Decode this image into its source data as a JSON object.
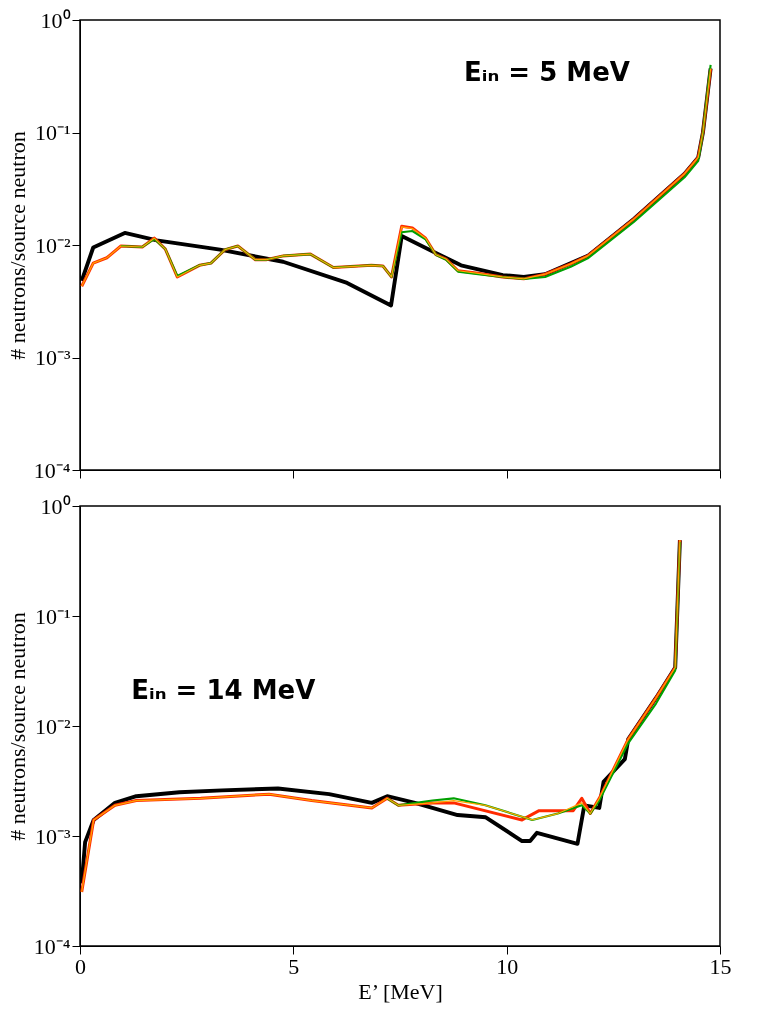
{
  "chart_data": [
    {
      "type": "line",
      "ylabel": "# neutrons/source neutron",
      "annotations": [
        "Eᵢₙ = 5 MeV"
      ],
      "log": "y",
      "grid": false,
      "legend": false,
      "tick_labels": "y",
      "line_style": "solid",
      "marker": "none",
      "xlim": [
        0,
        15
      ],
      "xticks": [
        {
          "value": 0,
          "label": null
        },
        {
          "value": 5,
          "label": null
        },
        {
          "value": 10,
          "label": null
        },
        {
          "value": 15,
          "label": null
        }
      ],
      "ylim": [
        0.0001,
        1
      ],
      "yticks": [
        {
          "value": 0.0001,
          "label": "10⁻⁴"
        },
        {
          "value": 0.001,
          "label": "10⁻³"
        },
        {
          "value": 0.01,
          "label": "10⁻²"
        },
        {
          "value": 0.1,
          "label": "10⁻¹"
        },
        {
          "value": 1,
          "label": "10⁰"
        }
      ],
      "series": [
        {
          "color": "#ffa500",
          "x": [
            0.04,
            0.31,
            0.63,
            0.96,
            1.46,
            1.74,
            2.0,
            2.28,
            2.8,
            3.07,
            3.4,
            3.7,
            4.11,
            4.36,
            4.76,
            5.4,
            5.94,
            6.83,
            7.1,
            7.3,
            7.54,
            7.79,
            8.1,
            8.34,
            8.58,
            8.86,
            9.33,
            9.9,
            10.4,
            10.9,
            11.5,
            11.9,
            12.98,
            14.17,
            14.49,
            14.6,
            14.78
          ],
          "values": [
            0.0043,
            0.0069,
            0.0077,
            0.0098,
            0.0096,
            0.0115,
            0.0092,
            0.0052,
            0.0066,
            0.0069,
            0.0091,
            0.0098,
            0.0074,
            0.0074,
            0.008,
            0.0083,
            0.0063,
            0.0066,
            0.0065,
            0.0052,
            0.0145,
            0.014,
            0.0115,
            0.0082,
            0.0075,
            0.0059,
            0.0056,
            0.0052,
            0.005,
            0.0055,
            0.0068,
            0.008,
            0.017,
            0.043,
            0.06,
            0.1,
            0.37
          ]
        },
        {
          "color": "#00a000",
          "x": [
            0.96,
            1.46,
            1.74,
            2.0,
            2.28,
            2.8,
            3.07,
            3.4,
            3.7,
            4.11,
            4.36,
            4.76,
            5.4,
            5.94,
            6.83,
            7.1,
            7.3,
            7.54,
            7.79,
            8.1,
            8.34,
            8.58,
            8.86,
            9.33,
            9.9,
            10.4,
            10.9,
            11.5,
            11.9,
            12.98,
            14.17,
            14.49,
            14.6,
            14.78
          ],
          "values": [
            0.0098,
            0.0096,
            0.0113,
            0.0092,
            0.0053,
            0.0066,
            0.0069,
            0.0091,
            0.0098,
            0.0074,
            0.0074,
            0.008,
            0.0083,
            0.0063,
            0.0066,
            0.0065,
            0.0052,
            0.013,
            0.0133,
            0.0112,
            0.0082,
            0.0074,
            0.0058,
            0.0055,
            0.0052,
            0.005,
            0.0052,
            0.0064,
            0.0076,
            0.016,
            0.04,
            0.056,
            0.1,
            0.4
          ]
        },
        {
          "color": "#ff2a00",
          "x": [
            0.04,
            0.31,
            0.63,
            0.96,
            1.46,
            1.74,
            2.0,
            2.28,
            2.8,
            3.07,
            3.4,
            3.7,
            4.11,
            4.36,
            4.76,
            5.4,
            5.94,
            6.83,
            7.1,
            7.3,
            7.54,
            7.79,
            8.1,
            8.34,
            8.58,
            8.86,
            9.33,
            9.9,
            10.4,
            10.9,
            11.5,
            11.9,
            12.98,
            14.17,
            14.49,
            14.6,
            14.78
          ],
          "values": [
            0.0043,
            0.0069,
            0.0077,
            0.0098,
            0.0096,
            0.0115,
            0.0092,
            0.0052,
            0.0066,
            0.0069,
            0.0091,
            0.0098,
            0.0074,
            0.0074,
            0.008,
            0.0083,
            0.0063,
            0.0066,
            0.0065,
            0.0052,
            0.0147,
            0.0142,
            0.0115,
            0.0082,
            0.0075,
            0.0059,
            0.0056,
            0.0052,
            0.005,
            0.0055,
            0.0068,
            0.008,
            0.017,
            0.043,
            0.06,
            0.1,
            0.37
          ]
        },
        {
          "color": "#000000",
          "x": [
            0.04,
            0.31,
            1.05,
            1.8,
            3.28,
            4.76,
            6.26,
            7.29,
            7.54,
            8.34,
            8.93,
            9.91,
            10.4,
            10.9,
            11.9,
            12.98,
            14.17,
            14.49,
            14.6,
            14.78
          ],
          "values": [
            0.0048,
            0.0095,
            0.0128,
            0.011,
            0.0091,
            0.0071,
            0.0046,
            0.0029,
            0.012,
            0.0085,
            0.0066,
            0.0054,
            0.0052,
            0.0055,
            0.008,
            0.017,
            0.043,
            0.06,
            0.1,
            0.37
          ]
        }
      ]
    },
    {
      "type": "line",
      "xlabel": "E’ [MeV]",
      "ylabel": "# neutrons/source neutron",
      "annotations": [
        "Eᵢₙ = 14 MeV"
      ],
      "log": "y",
      "grid": false,
      "legend": false,
      "line_style": "solid",
      "marker": "none",
      "xlim": [
        0,
        15
      ],
      "xticks": [
        0,
        5,
        10,
        15
      ],
      "ylim": [
        0.0001,
        1
      ],
      "yticks": [
        {
          "value": 0.0001,
          "label": "10⁻⁴"
        },
        {
          "value": 0.001,
          "label": "10⁻³"
        },
        {
          "value": 0.01,
          "label": "10⁻²"
        },
        {
          "value": 0.1,
          "label": "10⁻¹"
        },
        {
          "value": 1,
          "label": "10⁰"
        }
      ],
      "series": [
        {
          "color": "#ffa500",
          "x": [
            0.04,
            0.32,
            0.82,
            1.32,
            2.83,
            4.43,
            5.43,
            6.84,
            7.2,
            7.46,
            8.26,
            8.76,
            9.5,
            10.36,
            10.6,
            11.2,
            11.76,
            11.96,
            12.17,
            12.85,
            13.5,
            13.95,
            13.99,
            14.06
          ],
          "values": [
            0.00031,
            0.0014,
            0.0019,
            0.0021,
            0.0022,
            0.0024,
            0.0021,
            0.0018,
            0.0022,
            0.0019,
            0.002,
            0.0021,
            0.0019,
            0.0015,
            0.0014,
            0.0016,
            0.002,
            0.0016,
            0.0022,
            0.0076,
            0.018,
            0.034,
            0.089,
            0.49
          ]
        },
        {
          "color": "#00a000",
          "x": [
            7.2,
            7.46,
            8.26,
            8.76,
            9.5,
            10.36,
            10.6,
            11.2,
            11.76,
            11.96,
            12.17,
            12.85,
            13.5,
            13.95,
            13.99,
            14.06
          ],
          "values": [
            0.0022,
            0.0019,
            0.0021,
            0.0022,
            0.0019,
            0.0015,
            0.0014,
            0.0016,
            0.0019,
            0.0016,
            0.0021,
            0.007,
            0.016,
            0.032,
            0.085,
            0.47
          ]
        },
        {
          "color": "#ff2a00",
          "x": [
            0.04,
            0.32,
            0.82,
            1.32,
            2.83,
            4.43,
            5.43,
            6.84,
            7.2,
            7.46,
            8.26,
            8.76,
            10.36,
            10.76,
            11.56,
            11.76,
            11.96,
            12.17,
            12.85,
            13.5,
            13.95,
            13.99,
            14.06
          ],
          "values": [
            0.00031,
            0.0014,
            0.0019,
            0.0021,
            0.0022,
            0.0024,
            0.0021,
            0.0018,
            0.0022,
            0.0019,
            0.002,
            0.002,
            0.0014,
            0.0017,
            0.0017,
            0.0022,
            0.0016,
            0.0022,
            0.0076,
            0.018,
            0.034,
            0.089,
            0.49
          ]
        },
        {
          "color": "#000000",
          "x": [
            0.04,
            0.12,
            0.32,
            0.82,
            1.32,
            2.33,
            3.33,
            4.64,
            5.84,
            6.84,
            7.2,
            7.85,
            8.85,
            9.51,
            10.36,
            10.55,
            10.71,
            11.66,
            11.82,
            12.17,
            12.27,
            12.77,
            12.85,
            13.5,
            13.95,
            13.99,
            14.06
          ],
          "values": [
            0.00037,
            0.00088,
            0.0014,
            0.002,
            0.0023,
            0.0025,
            0.0026,
            0.0027,
            0.0024,
            0.002,
            0.0023,
            0.002,
            0.00155,
            0.00148,
            0.0009,
            0.0009,
            0.00107,
            0.00085,
            0.0019,
            0.0018,
            0.0031,
            0.005,
            0.0076,
            0.018,
            0.034,
            0.089,
            0.49
          ]
        }
      ]
    }
  ]
}
